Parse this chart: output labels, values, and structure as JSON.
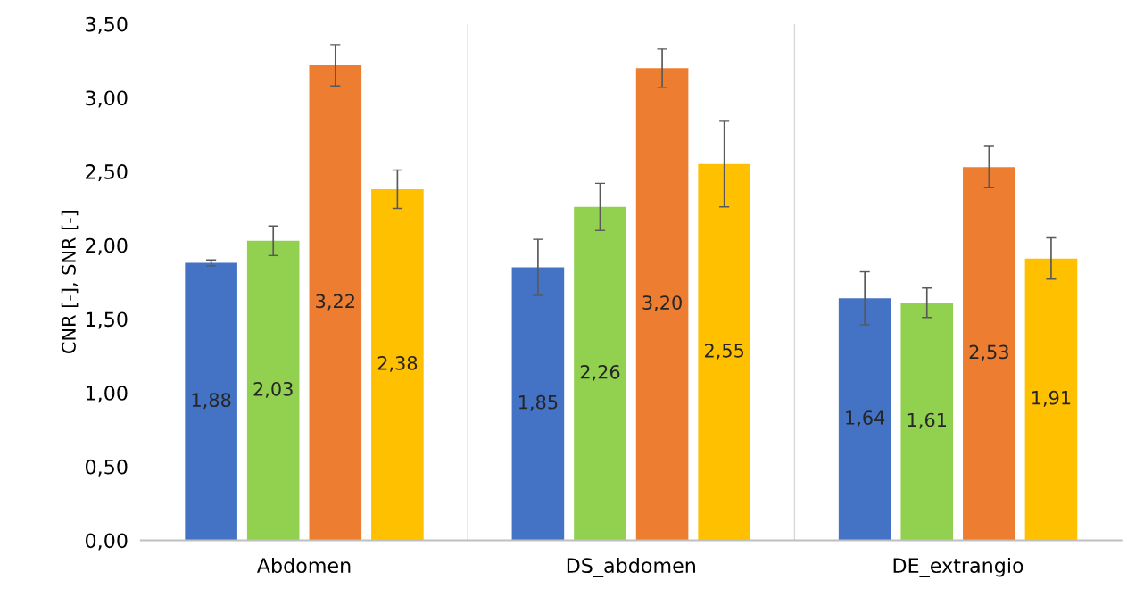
{
  "chart_data": {
    "type": "bar",
    "ylabel": "CNR [-], SNR [-]",
    "categories": [
      "Abdomen",
      "DS_abdomen",
      "DE_extrangio"
    ],
    "series": [
      {
        "color": "#4472c4",
        "values": [
          1.88,
          1.85,
          1.64
        ],
        "errors": [
          0.02,
          0.19,
          0.18
        ],
        "value_labels": [
          "1,88",
          "1,85",
          "1,64"
        ]
      },
      {
        "color": "#92d050",
        "values": [
          2.03,
          2.26,
          1.61
        ],
        "errors": [
          0.1,
          0.16,
          0.1
        ],
        "value_labels": [
          "2,03",
          "2,26",
          "1,61"
        ]
      },
      {
        "color": "#ed7d31",
        "values": [
          3.22,
          3.2,
          2.53
        ],
        "errors": [
          0.14,
          0.13,
          0.14
        ],
        "value_labels": [
          "3,22",
          "3,20",
          "2,53"
        ]
      },
      {
        "color": "#ffc000",
        "values": [
          2.38,
          2.55,
          1.91
        ],
        "errors": [
          0.13,
          0.29,
          0.14
        ],
        "value_labels": [
          "2,38",
          "2,55",
          "1,91"
        ]
      }
    ],
    "ylim": [
      0,
      3.5
    ],
    "yticks": [
      {
        "value": 0,
        "label": "0,00"
      },
      {
        "value": 0.5,
        "label": "0,50"
      },
      {
        "value": 1,
        "label": "1,00"
      },
      {
        "value": 1.5,
        "label": "1,50"
      },
      {
        "value": 2,
        "label": "2,00"
      },
      {
        "value": 2.5,
        "label": "2,50"
      },
      {
        "value": 3,
        "label": "3,00"
      },
      {
        "value": 3.5,
        "label": "3,50"
      }
    ],
    "grid": "x",
    "legend": false
  }
}
